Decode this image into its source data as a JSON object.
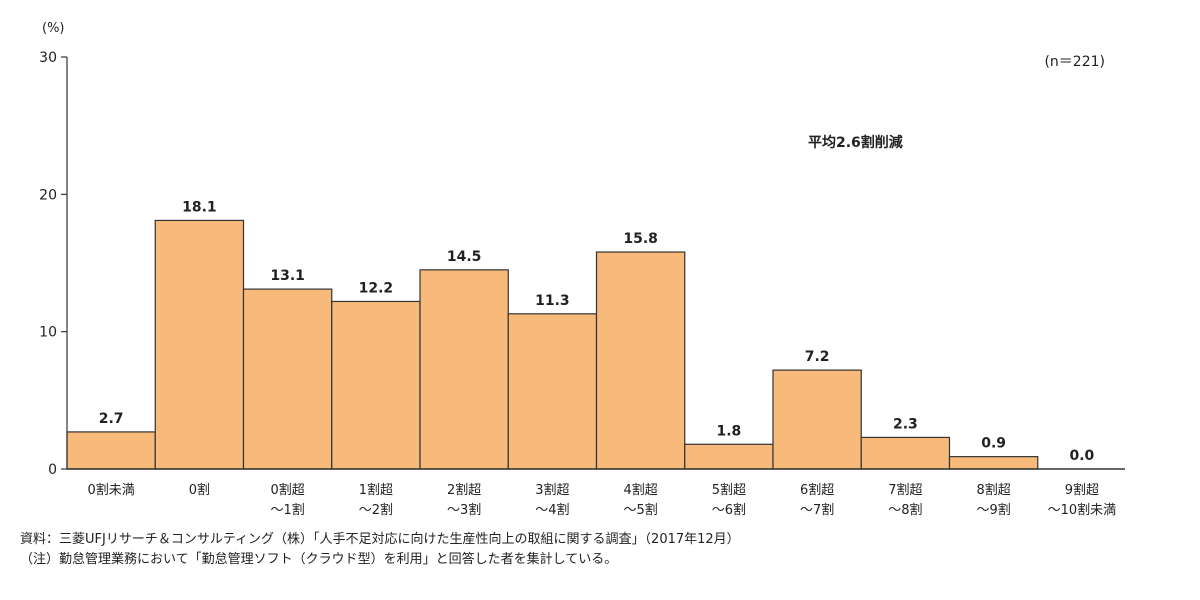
{
  "chart_data": {
    "type": "bar",
    "y_unit": "(%)",
    "sample_size": "(n＝221)",
    "annotation": "平均2.6割削減",
    "ylim": [
      0,
      30
    ],
    "yticks": [
      0,
      10,
      20,
      30
    ],
    "categories": [
      [
        "0割未満"
      ],
      [
        "0割"
      ],
      [
        "0割超",
        "～1割"
      ],
      [
        "1割超",
        "～2割"
      ],
      [
        "2割超",
        "～3割"
      ],
      [
        "3割超",
        "～4割"
      ],
      [
        "4割超",
        "～5割"
      ],
      [
        "5割超",
        "～6割"
      ],
      [
        "6割超",
        "～7割"
      ],
      [
        "7割超",
        "～8割"
      ],
      [
        "8割超",
        "～9割"
      ],
      [
        "9割超",
        "～10割未満"
      ]
    ],
    "values": [
      2.7,
      18.1,
      13.1,
      12.2,
      14.5,
      11.3,
      15.8,
      1.8,
      7.2,
      2.3,
      0.9,
      0.0
    ],
    "value_labels": [
      "2.7",
      "18.1",
      "13.1",
      "12.2",
      "14.5",
      "11.3",
      "15.8",
      "1.8",
      "7.2",
      "2.3",
      "0.9",
      "0.0"
    ],
    "bar_color": "#F8BA7A",
    "bar_stroke": "#333333"
  },
  "notes": {
    "source": "資料：三菱UFJリサーチ＆コンサルティング（株）「人手不足対応に向けた生産性向上の取組に関する調査」（2017年12月）",
    "note": "（注）勤怠管理業務において「勤怠管理ソフト（クラウド型）を利用」と回答した者を集計している。"
  }
}
